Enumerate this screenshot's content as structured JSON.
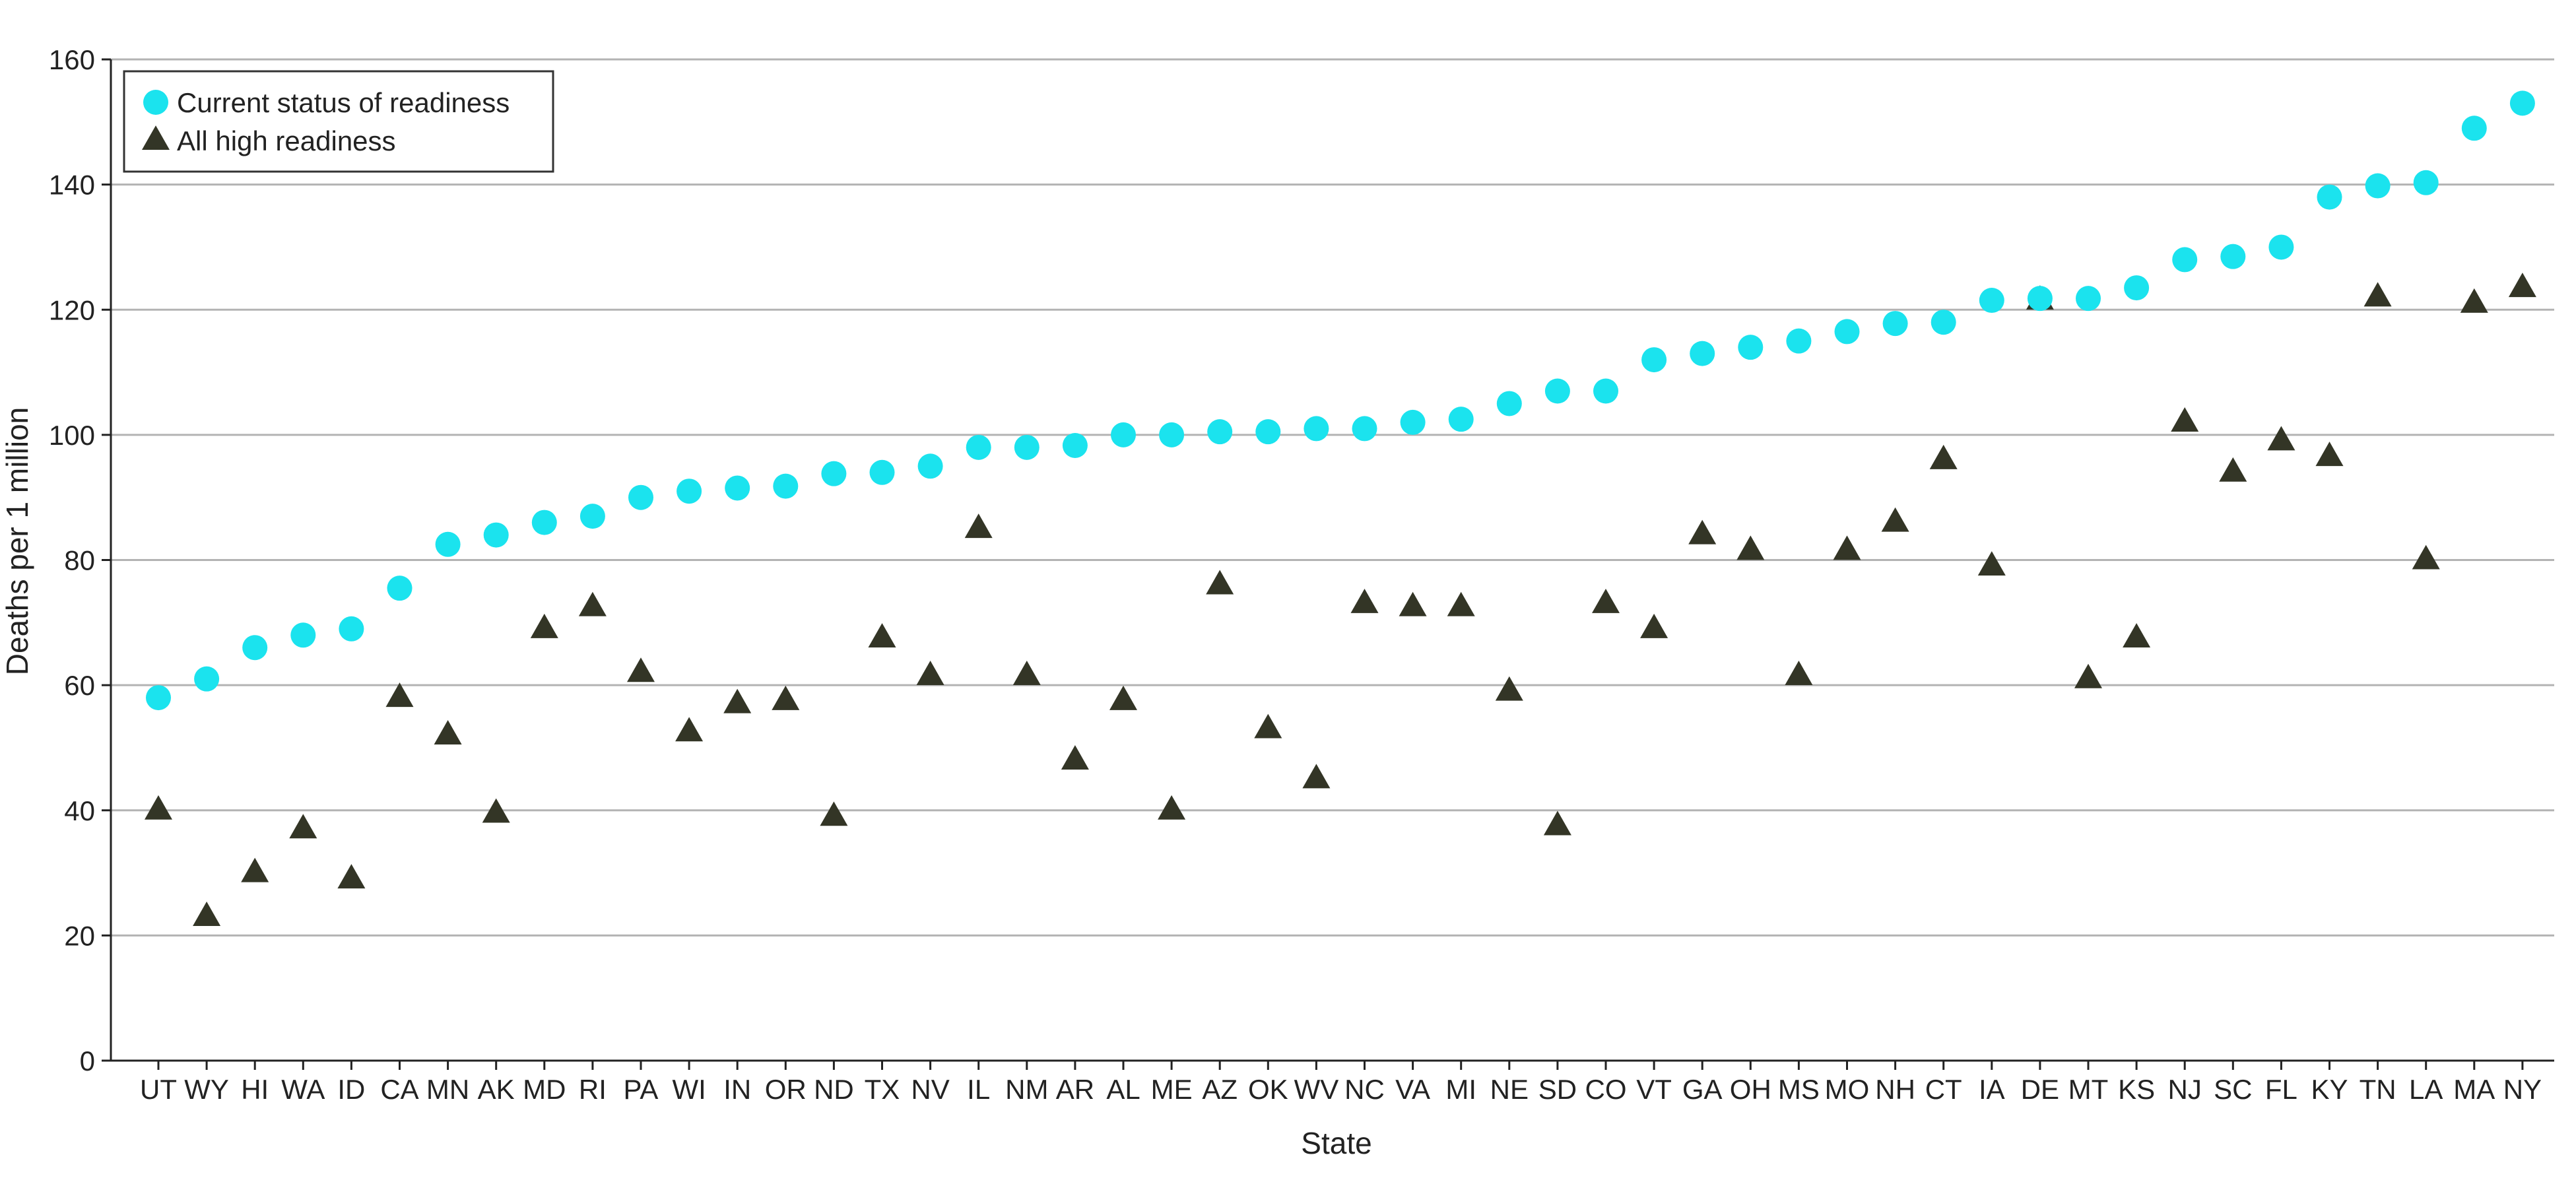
{
  "chart_data": {
    "type": "scatter",
    "xlabel": "State",
    "ylabel": "Deaths per 1 million",
    "ylim": [
      0,
      160
    ],
    "yticks": [
      0,
      20,
      40,
      60,
      80,
      100,
      120,
      140,
      160
    ],
    "grid": true,
    "legend_position": "top-left",
    "categories": [
      "UT",
      "WY",
      "HI",
      "WA",
      "ID",
      "CA",
      "MN",
      "AK",
      "MD",
      "RI",
      "PA",
      "WI",
      "IN",
      "OR",
      "ND",
      "TX",
      "NV",
      "IL",
      "NM",
      "AR",
      "AL",
      "ME",
      "AZ",
      "OK",
      "WV",
      "NC",
      "VA",
      "MI",
      "NE",
      "SD",
      "CO",
      "VT",
      "GA",
      "OH",
      "MS",
      "MO",
      "NH",
      "CT",
      "IA",
      "DE",
      "MT",
      "KS",
      "NJ",
      "SC",
      "FL",
      "KY",
      "TN",
      "LA",
      "MA",
      "NY"
    ],
    "series": [
      {
        "name": "Current status of readiness",
        "marker": "circle",
        "color": "#1BE3EE",
        "values": [
          58,
          61,
          66,
          68,
          69,
          75.5,
          82.5,
          84,
          86,
          87,
          90,
          91,
          91.5,
          91.8,
          93.8,
          94,
          95,
          98,
          98,
          98.3,
          100,
          100,
          100.5,
          100.5,
          101,
          101,
          102,
          102.5,
          105,
          107,
          107,
          112,
          113,
          114,
          115,
          116.5,
          117.8,
          118,
          121.5,
          121.8,
          121.8,
          123.5,
          128,
          128.5,
          130,
          138,
          139.8,
          140.3,
          149,
          153
        ]
      },
      {
        "name": "All high readiness",
        "marker": "triangle",
        "color": "#333526",
        "values": [
          40,
          23,
          30,
          37,
          29,
          58,
          52,
          39.5,
          69,
          72.5,
          62,
          52.5,
          57,
          57.5,
          39,
          67.5,
          61.5,
          85,
          61.5,
          48,
          57.5,
          40,
          76,
          53,
          45,
          73,
          72.5,
          72.5,
          59,
          37.5,
          73,
          69,
          84,
          81.5,
          61.5,
          81.5,
          86,
          96,
          79,
          121.5,
          61,
          67.5,
          102,
          94,
          99,
          96.5,
          122,
          80,
          121,
          123.5
        ]
      }
    ]
  },
  "colors": {
    "gridline": "#b3b3b3",
    "axis": "#222222"
  }
}
